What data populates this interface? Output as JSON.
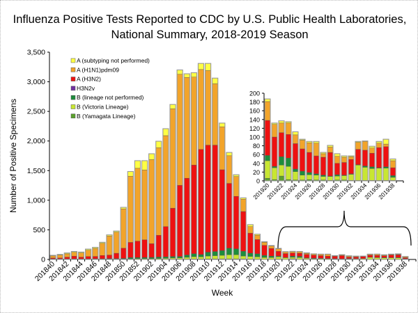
{
  "chart_data": {
    "type": "bar",
    "stacked": true,
    "title": [
      "Influenza Positive Tests Reported to CDC by U.S. Public Health Laboratories,",
      "National Summary, 2018-2019 Season"
    ],
    "xlabel": "Week",
    "ylabel": "Number of Positive Specimens",
    "ylim": [
      0,
      3500
    ],
    "yticks": [
      "0",
      "500",
      "1,000",
      "1,500",
      "2,000",
      "2,500",
      "3,000",
      "3,500"
    ],
    "legend_position": "top-left",
    "categories": [
      "201840",
      "201841",
      "201842",
      "201843",
      "201844",
      "201845",
      "201846",
      "201847",
      "201848",
      "201849",
      "201850",
      "201851",
      "201852",
      "201901",
      "201902",
      "201903",
      "201904",
      "201905",
      "201906",
      "201907",
      "201908",
      "201909",
      "201910",
      "201911",
      "201912",
      "201913",
      "201914",
      "201915",
      "201916",
      "201917",
      "201918",
      "201919",
      "201920",
      "201921",
      "201922",
      "201923",
      "201924",
      "201925",
      "201926",
      "201927",
      "201928",
      "201929",
      "201930",
      "201931",
      "201932",
      "201933",
      "201934",
      "201935",
      "201936",
      "201937",
      "201938"
    ],
    "series": [
      {
        "name": "B (Yamagata Lineage)",
        "color": "#5aa02c",
        "values": [
          2,
          2,
          2,
          2,
          2,
          2,
          2,
          2,
          2,
          2,
          3,
          3,
          3,
          3,
          3,
          4,
          4,
          5,
          5,
          6,
          7,
          8,
          8,
          9,
          10,
          10,
          10,
          8,
          6,
          5,
          4,
          4,
          6,
          3,
          11,
          3,
          2,
          2,
          3,
          2,
          2,
          1,
          2,
          2,
          1,
          1,
          1,
          1,
          1,
          1,
          1
        ]
      },
      {
        "name": "B (Victoria Lineage)",
        "color": "#c8e632",
        "values": [
          3,
          3,
          3,
          3,
          3,
          3,
          4,
          4,
          5,
          5,
          5,
          8,
          10,
          10,
          10,
          12,
          15,
          20,
          20,
          30,
          40,
          35,
          50,
          55,
          60,
          70,
          70,
          50,
          45,
          40,
          30,
          28,
          40,
          27,
          25,
          30,
          19,
          11,
          11,
          11,
          8,
          9,
          9,
          10,
          14,
          35,
          30,
          27,
          28,
          28,
          7
        ]
      },
      {
        "name": "B (lineage not performed)",
        "color": "#1e8c3c",
        "values": [
          5,
          5,
          5,
          5,
          5,
          5,
          6,
          6,
          8,
          8,
          10,
          20,
          20,
          20,
          22,
          25,
          25,
          25,
          25,
          40,
          50,
          40,
          65,
          70,
          80,
          110,
          100,
          80,
          55,
          50,
          35,
          25,
          12,
          3,
          19,
          19,
          6,
          9,
          5,
          3,
          3,
          1,
          3,
          1,
          1,
          1,
          3,
          4,
          1,
          3,
          4
        ]
      },
      {
        "name": "H3N2v",
        "color": "#7030a0",
        "values": [
          0,
          0,
          0,
          0,
          0,
          0,
          0,
          0,
          0,
          0,
          0,
          0,
          0,
          0,
          0,
          0,
          0,
          0,
          0,
          0,
          0,
          0,
          0,
          0,
          0,
          0,
          0,
          0,
          0,
          0,
          0,
          0,
          0,
          0,
          0,
          0,
          0,
          0,
          0,
          0,
          0,
          0,
          0,
          0,
          0,
          0,
          0,
          0,
          0,
          0,
          0
        ]
      },
      {
        "name": "A (H3N2)",
        "color": "#ee1111",
        "values": [
          15,
          15,
          30,
          45,
          30,
          40,
          40,
          55,
          60,
          90,
          172,
          257,
          277,
          299,
          231,
          368,
          511,
          815,
          1202,
          1296,
          1498,
          1775,
          1808,
          1797,
          1365,
          1095,
          886,
          672,
          339,
          241,
          170,
          130,
          80,
          67,
          55,
          54,
          58,
          51,
          46,
          41,
          41,
          54,
          26,
          29,
          33,
          35,
          36,
          31,
          46,
          46,
          18
        ]
      },
      {
        "name": "A (H1N1)pdm09",
        "color": "#f2a42a",
        "values": [
          35,
          50,
          55,
          65,
          70,
          105,
          135,
          205,
          320,
          355,
          665,
          1117,
          1230,
          1179,
          1420,
          1478,
          1536,
          1679,
          1876,
          1701,
          1485,
          1350,
          1259,
          1036,
          726,
          467,
          335,
          208,
          110,
          73,
          50,
          40,
          43,
          29,
          22,
          26,
          20,
          20,
          22,
          29,
          8,
          12,
          16,
          12,
          6,
          16,
          20,
          12,
          10,
          6,
          16
        ]
      },
      {
        "name": "A (subtyping not performed)",
        "color": "#ffff44",
        "values": [
          10,
          10,
          15,
          15,
          15,
          20,
          18,
          18,
          20,
          20,
          25,
          80,
          128,
          157,
          99,
          109,
          117,
          73,
          72,
          62,
          73,
          102,
          120,
          95,
          62,
          55,
          30,
          22,
          33,
          18,
          11,
          8,
          6,
          3,
          5,
          3,
          7,
          2,
          3,
          4,
          3,
          4,
          6,
          3,
          2,
          2,
          1,
          4,
          4,
          11,
          4
        ]
      }
    ],
    "inset": {
      "first_category": "201920",
      "ylim": [
        0,
        200
      ],
      "yticks": [
        "0",
        "20",
        "40",
        "60",
        "80",
        "100",
        "120",
        "140",
        "160",
        "180",
        "200"
      ],
      "xticks": [
        "201920",
        "201922",
        "201924",
        "201926",
        "201928",
        "201930",
        "201932",
        "201934",
        "201936",
        "201938"
      ]
    },
    "xticks": [
      "201840",
      "201842",
      "201844",
      "201846",
      "201848",
      "201850",
      "201852",
      "201902",
      "201904",
      "201906",
      "201908",
      "201910",
      "201912",
      "201914",
      "201916",
      "201918",
      "201920",
      "201922",
      "201924",
      "201926",
      "201928",
      "201930",
      "201932",
      "201934",
      "201936",
      "201938"
    ],
    "legend_order": [
      "A (subtyping not performed)",
      "A (H1N1)pdm09",
      "A (H3N2)",
      "H3N2v",
      "B (lineage not performed)",
      "B (Victoria Lineage)",
      "B (Yamagata Lineage)"
    ]
  }
}
